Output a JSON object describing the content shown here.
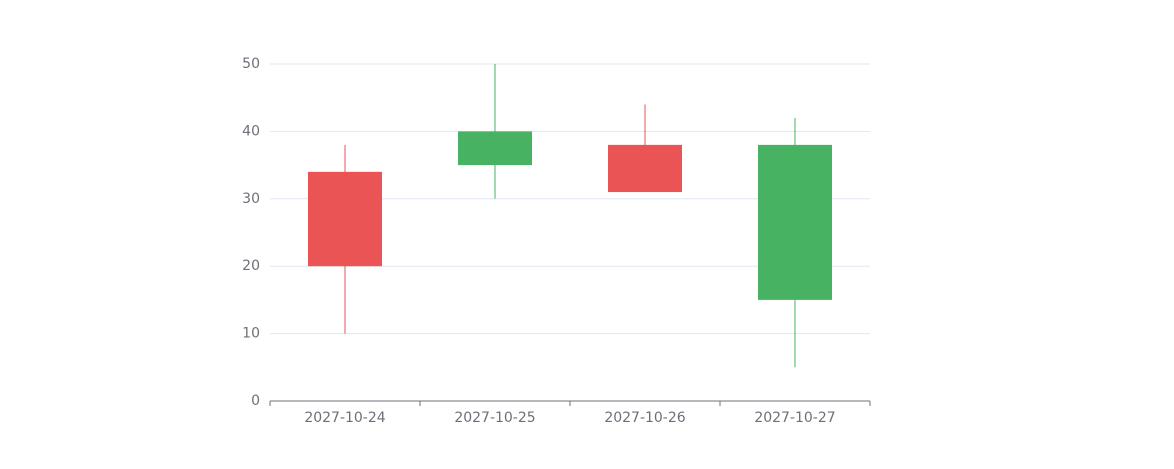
{
  "chart_data": {
    "type": "candlestick",
    "categories": [
      "2027-10-24",
      "2027-10-25",
      "2027-10-26",
      "2027-10-27"
    ],
    "open": [
      20,
      40,
      31,
      38
    ],
    "close": [
      34,
      35,
      38,
      15
    ],
    "low": [
      10,
      30,
      31,
      5
    ],
    "high": [
      38,
      50,
      44,
      42
    ],
    "up_color": "#eb5454",
    "down_color": "#47b262",
    "ylim": [
      0,
      50
    ],
    "yticks": [
      0,
      10,
      20,
      30,
      40,
      50
    ],
    "grid": true
  }
}
